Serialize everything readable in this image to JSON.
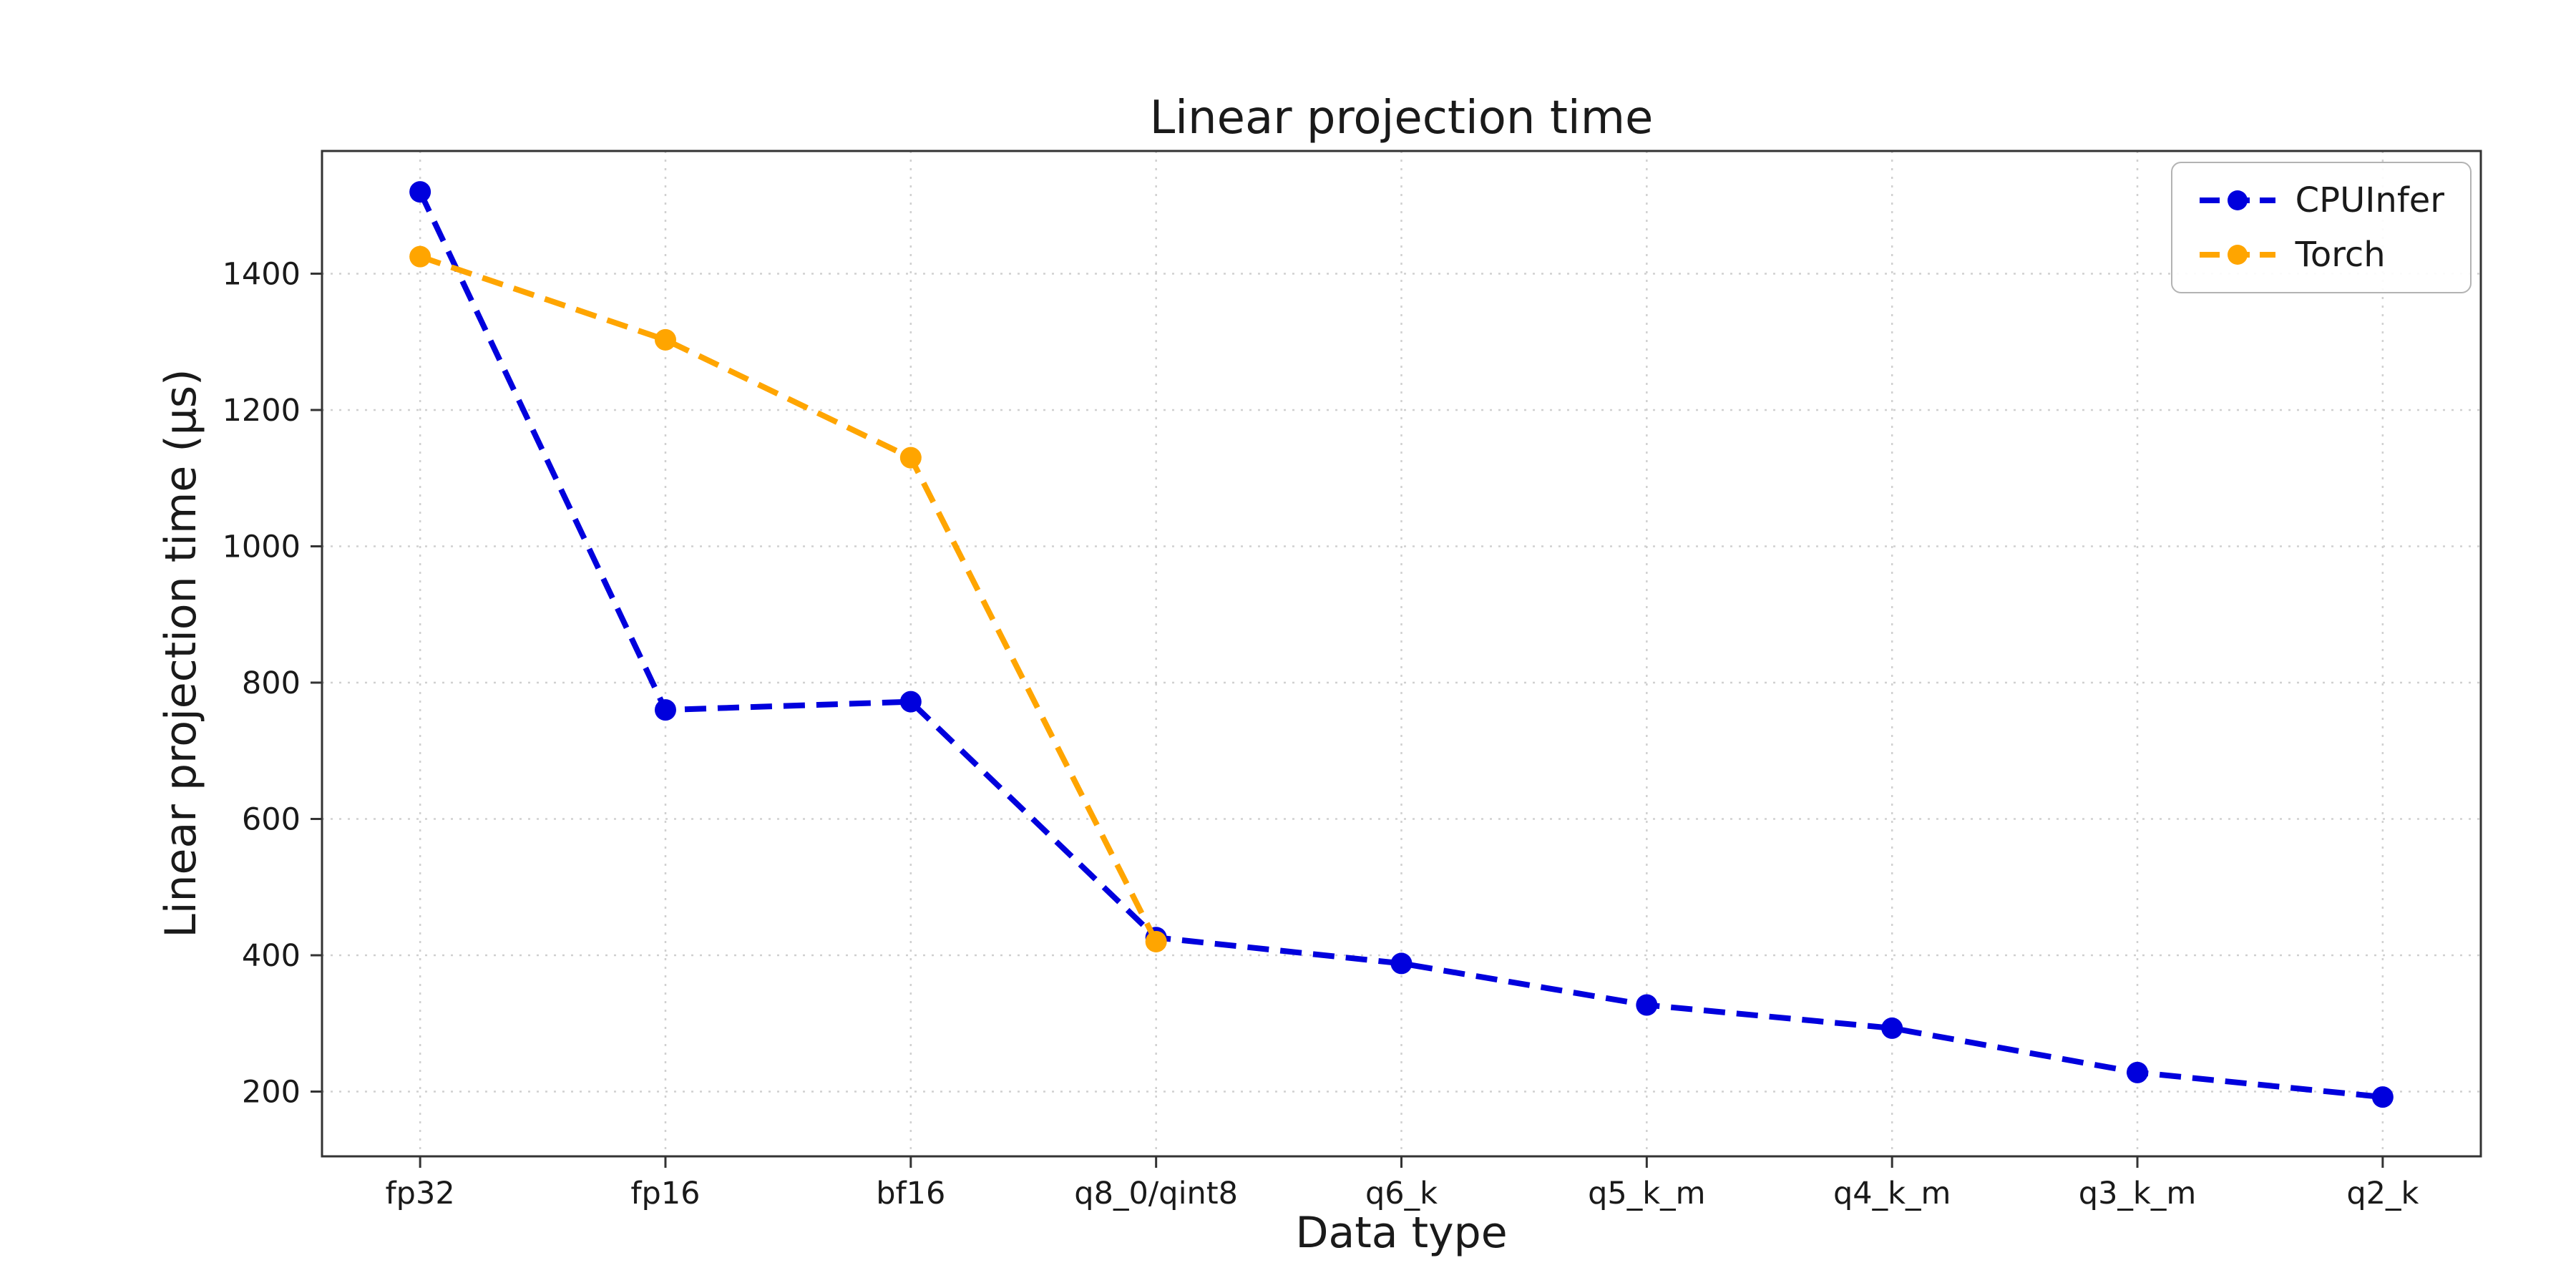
{
  "chart_data": {
    "type": "line",
    "title": "Linear projection time",
    "xlabel": "Data type",
    "ylabel": "Linear projection time (μs)",
    "categories": [
      "fp32",
      "fp16",
      "bf16",
      "q8_0/qint8",
      "q6_k",
      "q5_k_m",
      "q4_k_m",
      "q3_k_m",
      "q2_k"
    ],
    "series": [
      {
        "name": "CPUInfer",
        "color": "#0000dd",
        "values": [
          1520,
          760,
          772,
          426,
          388,
          327,
          293,
          228,
          192
        ]
      },
      {
        "name": "Torch",
        "color": "#ffa500",
        "values": [
          1425,
          1303,
          1130,
          420,
          null,
          null,
          null,
          null,
          null
        ]
      }
    ],
    "yticks": [
      200,
      400,
      600,
      800,
      1000,
      1200,
      1400
    ],
    "ylim": [
      105,
      1580
    ],
    "grid": true,
    "grid_style": "dotted",
    "line_style": "dashed",
    "marker": "circle",
    "legend_position": "upper right",
    "grid_color": "#d0d0d0",
    "spine_color": "#333333",
    "text_color": "#1a1a1a"
  }
}
